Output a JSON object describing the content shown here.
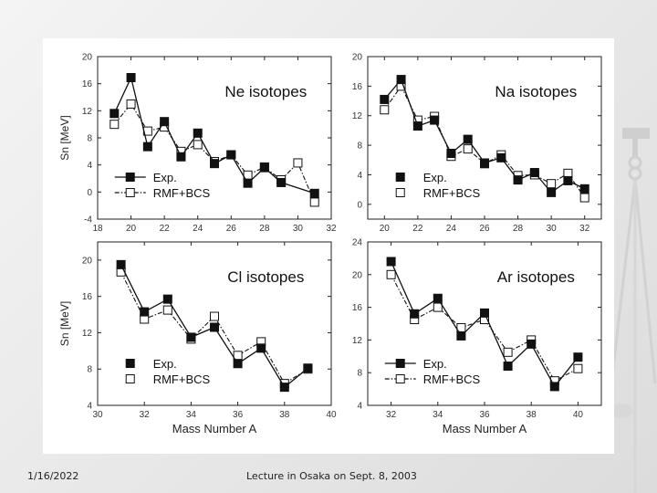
{
  "footer": {
    "date": "1/16/2022",
    "lecture": "Lecture in Osaka on Sept. 8, 2003"
  },
  "colors": {
    "axis": "#222222",
    "line": "#111111",
    "marker": "#111111"
  },
  "chart_data": [
    {
      "type": "line",
      "title": "Ne isotopes",
      "xlabel": "",
      "ylabel": "Sn [MeV]",
      "xlim": [
        18,
        32
      ],
      "ylim": [
        -4,
        20
      ],
      "xticks": [
        18,
        20,
        22,
        24,
        26,
        28,
        30,
        32
      ],
      "yticks": [
        -4,
        0,
        4,
        8,
        12,
        16,
        20
      ],
      "legend": [
        "Exp.",
        "RMF+BCS"
      ],
      "legend_style": "line",
      "series": [
        {
          "name": "Exp.",
          "x": [
            19,
            20,
            21,
            22,
            23,
            24,
            25,
            26,
            27,
            28,
            29,
            30,
            31
          ],
          "values": [
            11.6,
            16.9,
            6.7,
            10.4,
            5.2,
            8.7,
            4.2,
            5.5,
            1.3,
            3.6,
            1.4,
            null,
            -0.2
          ]
        },
        {
          "name": "RMF+BCS",
          "x": [
            19,
            20,
            21,
            22,
            23,
            24,
            25,
            26,
            27,
            28,
            29,
            30,
            31
          ],
          "values": [
            10.0,
            13.0,
            9.0,
            9.6,
            6.0,
            7.0,
            4.5,
            5.5,
            2.5,
            3.7,
            1.8,
            4.3,
            -1.5
          ]
        }
      ]
    },
    {
      "type": "line",
      "title": "Na isotopes",
      "xlabel": "",
      "ylabel": "",
      "xlim": [
        19,
        33
      ],
      "ylim": [
        -2,
        20
      ],
      "xticks": [
        20,
        22,
        24,
        26,
        28,
        30,
        32
      ],
      "yticks": [
        0,
        4,
        8,
        12,
        16,
        20
      ],
      "legend": [
        "Exp.",
        "RMF+BCS"
      ],
      "legend_style": "marker",
      "series": [
        {
          "name": "Exp.",
          "x": [
            20,
            21,
            22,
            23,
            24,
            25,
            26,
            27,
            28,
            29,
            30,
            31,
            32
          ],
          "values": [
            14.2,
            16.9,
            10.6,
            11.4,
            6.9,
            8.8,
            5.6,
            6.3,
            3.3,
            4.3,
            1.6,
            3.2,
            2.1
          ]
        },
        {
          "name": "RMF+BCS",
          "x": [
            20,
            21,
            22,
            23,
            24,
            25,
            26,
            27,
            28,
            29,
            30,
            31,
            32
          ],
          "values": [
            12.8,
            16.0,
            11.4,
            11.9,
            6.5,
            7.5,
            5.5,
            6.7,
            3.9,
            4.0,
            2.8,
            4.2,
            0.9
          ]
        }
      ]
    },
    {
      "type": "line",
      "title": "Cl isotopes",
      "xlabel": "Mass Number A",
      "ylabel": "Sn [MeV]",
      "xlim": [
        30,
        40
      ],
      "ylim": [
        4,
        22
      ],
      "xticks": [
        30,
        32,
        34,
        36,
        38,
        40
      ],
      "yticks": [
        4,
        8,
        12,
        16,
        20
      ],
      "legend": [
        "Exp.",
        "RMF+BCS"
      ],
      "legend_style": "marker",
      "series": [
        {
          "name": "Exp.",
          "x": [
            31,
            32,
            33,
            34,
            35,
            36,
            37,
            38,
            39
          ],
          "values": [
            19.5,
            14.3,
            15.7,
            11.5,
            12.6,
            8.6,
            10.3,
            6.0,
            8.1
          ]
        },
        {
          "name": "RMF+BCS",
          "x": [
            31,
            32,
            33,
            34,
            35,
            36,
            37,
            38,
            39
          ],
          "values": [
            18.7,
            13.5,
            14.5,
            11.3,
            13.8,
            9.5,
            11.0,
            6.4,
            8.0
          ]
        }
      ]
    },
    {
      "type": "line",
      "title": "Ar isotopes",
      "xlabel": "Mass Number A",
      "ylabel": "",
      "xlim": [
        31,
        41
      ],
      "ylim": [
        4,
        24
      ],
      "xticks": [
        32,
        34,
        36,
        38,
        40
      ],
      "yticks": [
        4,
        8,
        12,
        16,
        20,
        24
      ],
      "legend": [
        "Exp.",
        "RMF+BCS"
      ],
      "legend_style": "line",
      "series": [
        {
          "name": "Exp.",
          "x": [
            32,
            33,
            34,
            35,
            36,
            37,
            38,
            39,
            40
          ],
          "values": [
            21.6,
            15.2,
            17.1,
            12.5,
            15.3,
            8.8,
            11.5,
            6.3,
            9.9
          ]
        },
        {
          "name": "RMF+BCS",
          "x": [
            32,
            33,
            34,
            35,
            36,
            37,
            38,
            39,
            40
          ],
          "values": [
            20.0,
            14.5,
            16.0,
            13.5,
            14.5,
            10.5,
            12.0,
            7.0,
            8.5
          ]
        }
      ]
    }
  ]
}
